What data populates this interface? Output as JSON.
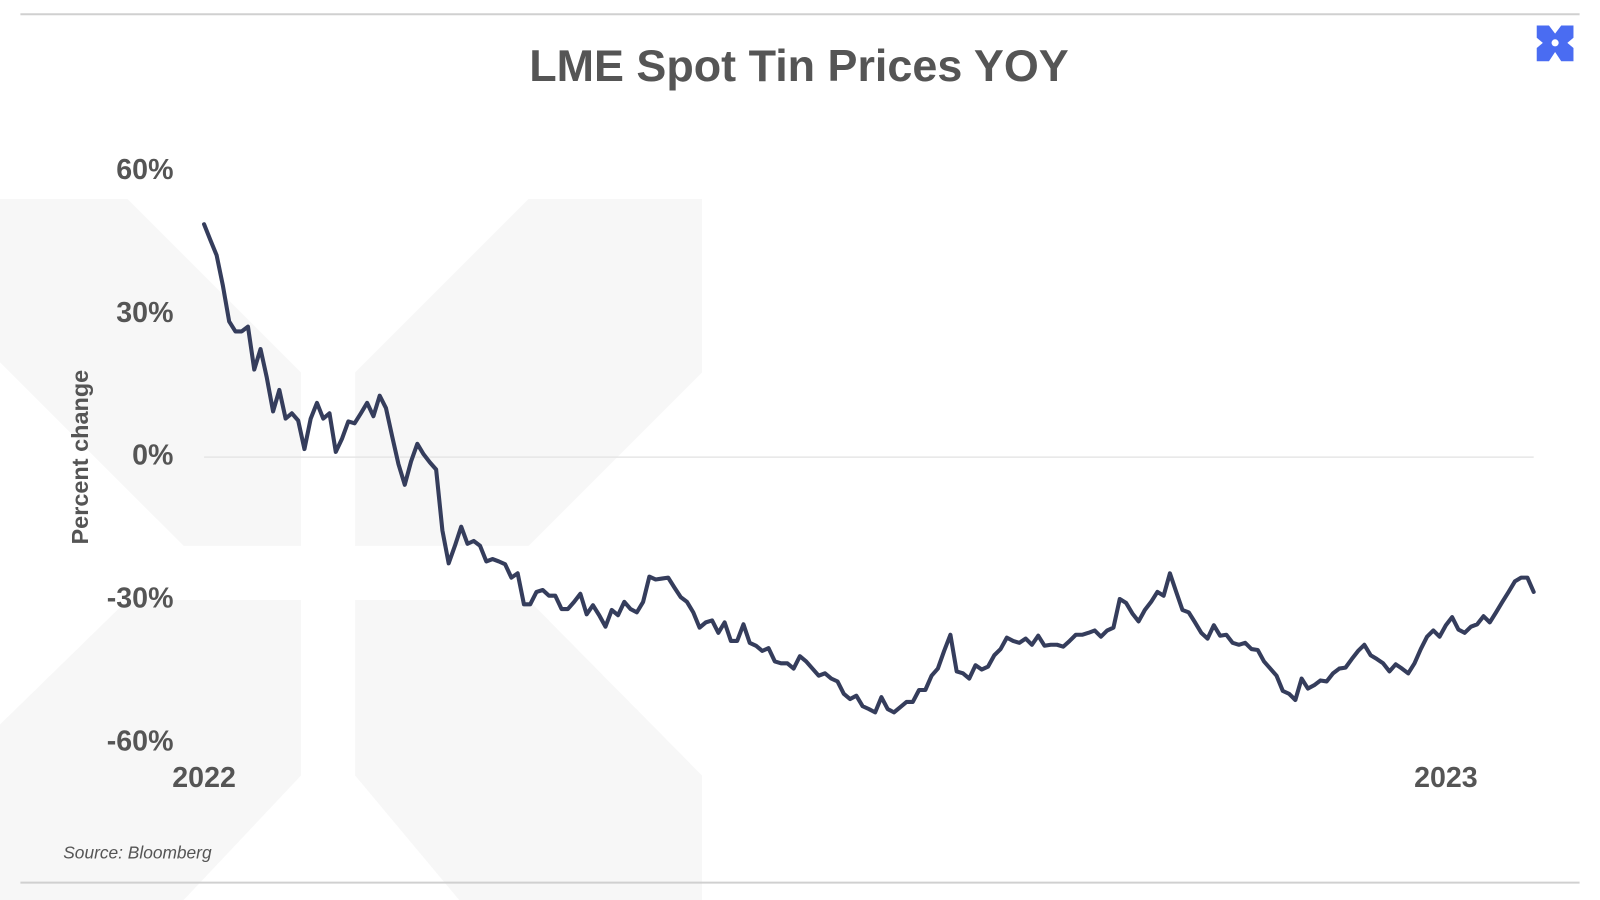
{
  "chart_data": {
    "type": "line",
    "title": "LME Spot Tin Prices YOY",
    "y_label": "Percent change",
    "source": "Source: Bloomberg",
    "color": "#353d5c",
    "zero_line": true,
    "ylim": [
      -60,
      60
    ],
    "yticks": [
      {
        "value": 60,
        "label": "60%"
      },
      {
        "value": 30,
        "label": "30%"
      },
      {
        "value": 0,
        "label": "0%"
      },
      {
        "value": -30,
        "label": "-30%"
      },
      {
        "value": -60,
        "label": "-60%"
      }
    ],
    "categories": [
      "2022",
      null,
      null,
      null,
      null,
      null,
      null,
      null,
      null,
      null,
      null,
      null,
      null,
      null,
      null,
      null,
      null,
      null,
      null,
      null,
      null,
      null,
      null,
      null,
      null,
      null,
      null,
      null,
      null,
      null,
      null,
      null,
      null,
      null,
      null,
      null,
      null,
      null,
      null,
      null,
      null,
      null,
      null,
      null,
      null,
      null,
      null,
      null,
      null,
      null,
      null,
      null,
      null,
      null,
      null,
      null,
      null,
      null,
      null,
      null,
      null,
      null,
      null,
      null,
      null,
      null,
      null,
      null,
      null,
      null,
      null,
      null,
      null,
      null,
      null,
      null,
      null,
      null,
      null,
      null,
      null,
      null,
      null,
      null,
      null,
      null,
      null,
      null,
      null,
      null,
      null,
      null,
      null,
      null,
      null,
      null,
      null,
      null,
      null,
      null,
      null,
      null,
      null,
      null,
      null,
      null,
      null,
      null,
      null,
      null,
      null,
      null,
      null,
      null,
      null,
      null,
      null,
      null,
      null,
      null,
      null,
      null,
      null,
      null,
      null,
      null,
      null,
      null,
      null,
      null,
      null,
      null,
      null,
      null,
      null,
      null,
      null,
      null,
      null,
      null,
      null,
      null,
      null,
      null,
      null,
      null,
      null,
      null,
      null,
      null,
      null,
      null,
      null,
      null,
      null,
      null,
      null,
      null,
      null,
      null,
      null,
      null,
      null,
      null,
      null,
      null,
      null,
      null,
      null,
      null,
      null,
      null,
      null,
      null,
      null,
      null,
      null,
      null,
      null,
      null,
      null,
      null,
      null,
      null,
      null,
      null,
      null,
      null,
      null,
      null,
      null,
      null,
      null,
      null,
      null,
      null,
      null,
      null,
      "2023",
      null,
      null,
      null,
      null,
      null,
      null,
      null,
      null,
      null,
      null,
      null,
      null,
      null,
      null
    ],
    "values": [
      48.9,
      45.6,
      42.4,
      36,
      28.5,
      26.4,
      26.4,
      27.4,
      18.4,
      22.7,
      16.7,
      9.6,
      14.1,
      8.1,
      9.2,
      7.7,
      1.7,
      8.1,
      11.4,
      8.1,
      9.2,
      1.1,
      3.9,
      7.5,
      7.1,
      9.2,
      11.4,
      8.6,
      12.9,
      10.3,
      4.3,
      -1.5,
      -5.8,
      -0.9,
      2.8,
      0.6,
      -1.1,
      -2.6,
      -15.4,
      -22.3,
      -18.6,
      -14.6,
      -18.2,
      -17.6,
      -18.6,
      -21.9,
      -21.4,
      -21.9,
      -22.5,
      -25.3,
      -24.4,
      -30.9,
      -30.9,
      -28.3,
      -27.9,
      -29.1,
      -29.1,
      -31.9,
      -31.9,
      -30.4,
      -28.7,
      -33,
      -31.1,
      -33.2,
      -35.6,
      -32.1,
      -33.2,
      -30.4,
      -31.9,
      -32.6,
      -30.4,
      -25.1,
      -25.7,
      -25.5,
      -25.3,
      -27.4,
      -29.4,
      -30.4,
      -32.6,
      -35.8,
      -34.7,
      -34.3,
      -36.9,
      -34.7,
      -38.6,
      -38.6,
      -35.1,
      -39,
      -39.6,
      -40.7,
      -40.1,
      -42.9,
      -43.3,
      -43.3,
      -44.4,
      -41.8,
      -42.9,
      -44.4,
      -45.9,
      -45.4,
      -46.5,
      -47.1,
      -49.7,
      -50.8,
      -50.1,
      -52.3,
      -52.9,
      -53.6,
      -50.4,
      -52.9,
      -53.6,
      -52.5,
      -51.4,
      -51.4,
      -48.9,
      -48.9,
      -45.9,
      -44.4,
      -40.7,
      -37.3,
      -45,
      -45.4,
      -46.5,
      -43.7,
      -44.6,
      -44,
      -41.6,
      -40.3,
      -37.9,
      -38.6,
      -39,
      -38.1,
      -39.4,
      -37.5,
      -39.6,
      -39.4,
      -39.4,
      -39.8,
      -38.6,
      -37.3,
      -37.3,
      -36.9,
      -36.4,
      -37.7,
      -36.4,
      -35.8,
      -29.8,
      -30.6,
      -32.8,
      -34.5,
      -32.1,
      -30.4,
      -28.3,
      -29.1,
      -24.4,
      -28.3,
      -32.1,
      -32.6,
      -34.7,
      -36.9,
      -38.1,
      -35.3,
      -37.5,
      -37.3,
      -39,
      -39.4,
      -39,
      -40.3,
      -40.5,
      -42.9,
      -44.4,
      -45.9,
      -49.1,
      -49.7,
      -51,
      -46.5,
      -48.6,
      -47.9,
      -46.9,
      -47.1,
      -45.4,
      -44.4,
      -44.2,
      -42.4,
      -40.7,
      -39.4,
      -41.6,
      -42.4,
      -43.3,
      -45,
      -43.5,
      -44.4,
      -45.4,
      -43.3,
      -40.3,
      -37.7,
      -36.4,
      -37.7,
      -35.3,
      -33.6,
      -36.2,
      -36.9,
      -35.6,
      -35.1,
      -33.4,
      -34.7,
      -32.6,
      -30.4,
      -28.3,
      -26.1,
      -25.3,
      -25.3,
      -28.3
    ]
  }
}
